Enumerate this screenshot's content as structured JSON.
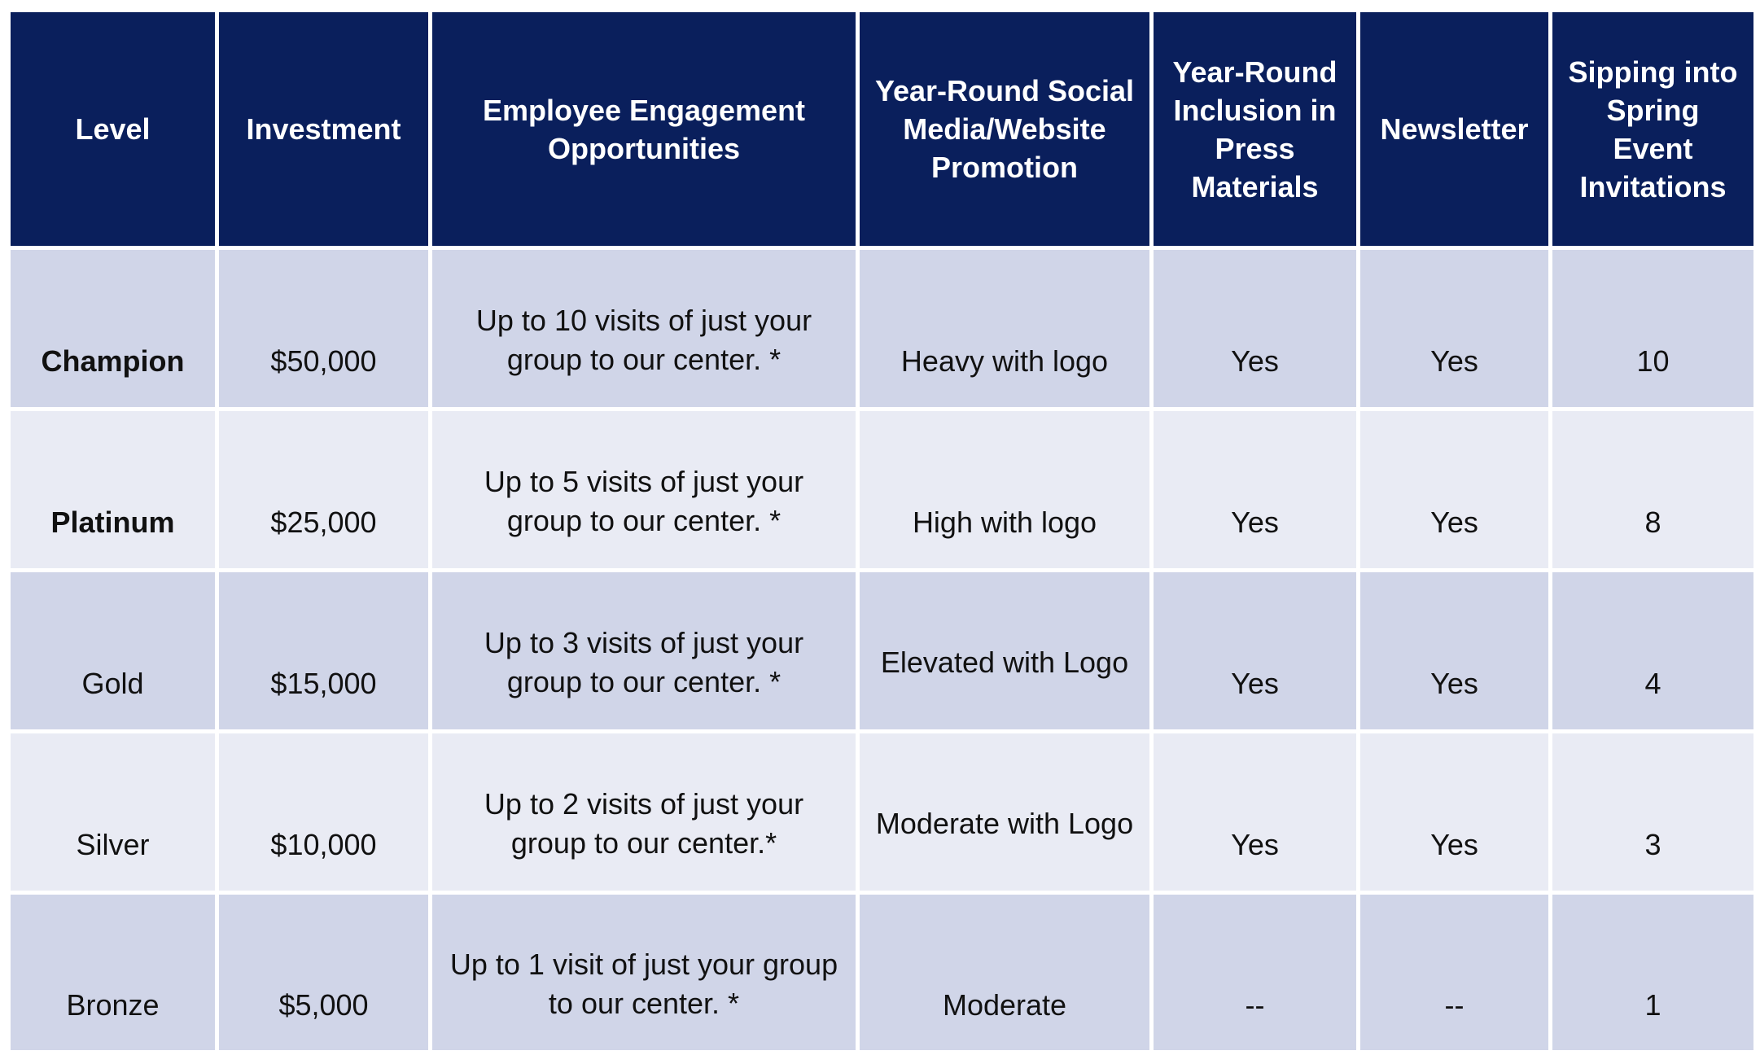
{
  "table": {
    "headers": [
      "Level",
      "Investment",
      "Employee Engagement Opportunities",
      "Year-Round Social Media/Website Promotion",
      "Year-Round Inclusion in Press Materials",
      "Newsletter",
      "Sipping into Spring Event Invitations"
    ],
    "rows": [
      {
        "level": "Champion",
        "investment": "$50,000",
        "engagement": "Up to 10 visits of just your group to our center. *",
        "promotion": "Heavy with logo",
        "press": "Yes",
        "newsletter": "Yes",
        "invitations": "10"
      },
      {
        "level": "Platinum",
        "investment": "$25,000",
        "engagement": "Up to 5 visits of just your group to our center. *",
        "promotion": "High with logo",
        "press": "Yes",
        "newsletter": "Yes",
        "invitations": "8"
      },
      {
        "level": "Gold",
        "investment": "$15,000",
        "engagement": "Up to 3 visits of just your group to our center. *",
        "promotion": "Elevated with Logo",
        "press": "Yes",
        "newsletter": "Yes",
        "invitations": "4"
      },
      {
        "level": "Silver",
        "investment": "$10,000",
        "engagement": "Up to 2 visits of just your group to our center.*",
        "promotion": "Moderate with Logo",
        "press": "Yes",
        "newsletter": "Yes",
        "invitations": "3"
      },
      {
        "level": "Bronze",
        "investment": "$5,000",
        "engagement": "Up to 1 visit of just your group to our center. *",
        "promotion": "Moderate",
        "press": "--",
        "newsletter": "--",
        "invitations": "1"
      }
    ]
  },
  "colors": {
    "header_bg": "#0a1f5c",
    "row_dark_bg": "#d0d5e8",
    "row_light_bg": "#e9ebf4"
  }
}
